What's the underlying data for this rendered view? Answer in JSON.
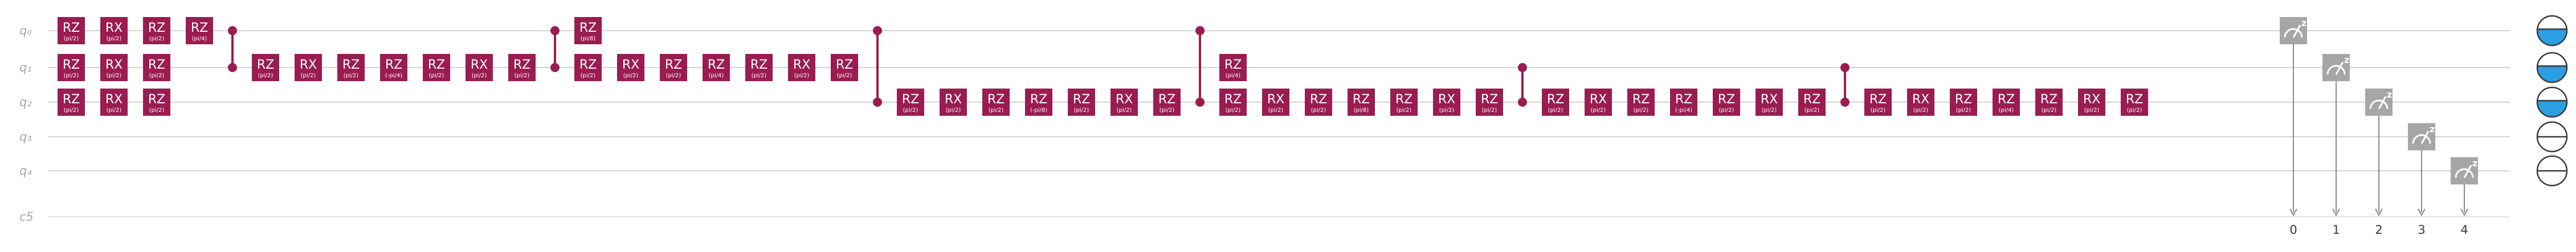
{
  "qubits": [
    {
      "label": "q₀",
      "state_fill": 0.55
    },
    {
      "label": "q₁",
      "state_fill": 0.55
    },
    {
      "label": "q₂",
      "state_fill": 0.55
    },
    {
      "label": "q₃",
      "state_fill": 0
    },
    {
      "label": "q₄",
      "state_fill": 0
    }
  ],
  "classical": {
    "label": "c5",
    "bits": [
      "0",
      "1",
      "2",
      "3",
      "4"
    ]
  },
  "colors": {
    "gate": "#9a1c50",
    "control": "#9a1c50",
    "measure": "#a6a6a6",
    "wire": "#d4d4d4",
    "classical_wire": "#e4e4e4",
    "state_fill": "#2a9fe4",
    "state_outline": "#3a3a3a"
  },
  "icons": {
    "measure": "meter-icon",
    "state": "qubit-state-icon"
  },
  "measure_label": "z",
  "columns": [
    {
      "type": "gates",
      "gates": [
        {
          "q": 0,
          "name": "RZ",
          "param": "(pi/2)"
        },
        {
          "q": 1,
          "name": "RZ",
          "param": "(pi/2)"
        },
        {
          "q": 2,
          "name": "RZ",
          "param": "(pi/2)"
        }
      ]
    },
    {
      "type": "gates",
      "gates": [
        {
          "q": 0,
          "name": "RX",
          "param": "(pi/2)"
        },
        {
          "q": 1,
          "name": "RX",
          "param": "(pi/2)"
        },
        {
          "q": 2,
          "name": "RX",
          "param": "(pi/2)"
        }
      ]
    },
    {
      "type": "gates",
      "gates": [
        {
          "q": 0,
          "name": "RZ",
          "param": "(pi/2)"
        },
        {
          "q": 1,
          "name": "RZ",
          "param": "(pi/2)"
        },
        {
          "q": 2,
          "name": "RZ",
          "param": "(pi/2)"
        }
      ]
    },
    {
      "type": "gates",
      "gates": [
        {
          "q": 0,
          "name": "RZ",
          "param": "(pi/4)"
        }
      ]
    },
    {
      "type": "cz",
      "qubits": [
        0,
        1
      ]
    },
    {
      "type": "gates",
      "gates": [
        {
          "q": 1,
          "name": "RZ",
          "param": "(pi/2)"
        }
      ]
    },
    {
      "type": "gates",
      "gates": [
        {
          "q": 1,
          "name": "RX",
          "param": "(pi/2)"
        }
      ]
    },
    {
      "type": "gates",
      "gates": [
        {
          "q": 1,
          "name": "RZ",
          "param": "(pi/2)"
        }
      ]
    },
    {
      "type": "gates",
      "gates": [
        {
          "q": 1,
          "name": "RZ",
          "param": "(-pi/4)"
        }
      ]
    },
    {
      "type": "gates",
      "gates": [
        {
          "q": 1,
          "name": "RZ",
          "param": "(pi/2)"
        }
      ]
    },
    {
      "type": "gates",
      "gates": [
        {
          "q": 1,
          "name": "RX",
          "param": "(pi/2)"
        }
      ]
    },
    {
      "type": "gates",
      "gates": [
        {
          "q": 1,
          "name": "RZ",
          "param": "(pi/2)"
        }
      ]
    },
    {
      "type": "cz",
      "qubits": [
        0,
        1
      ]
    },
    {
      "type": "gates",
      "gates": [
        {
          "q": 0,
          "name": "RZ",
          "param": "(pi/8)"
        },
        {
          "q": 1,
          "name": "RZ",
          "param": "(pi/2)"
        }
      ]
    },
    {
      "type": "gates",
      "gates": [
        {
          "q": 1,
          "name": "RX",
          "param": "(pi/2)"
        }
      ]
    },
    {
      "type": "gates",
      "gates": [
        {
          "q": 1,
          "name": "RZ",
          "param": "(pi/2)"
        }
      ]
    },
    {
      "type": "gates",
      "gates": [
        {
          "q": 1,
          "name": "RZ",
          "param": "(pi/4)"
        }
      ]
    },
    {
      "type": "gates",
      "gates": [
        {
          "q": 1,
          "name": "RZ",
          "param": "(pi/2)"
        }
      ]
    },
    {
      "type": "gates",
      "gates": [
        {
          "q": 1,
          "name": "RX",
          "param": "(pi/2)"
        }
      ]
    },
    {
      "type": "gates",
      "gates": [
        {
          "q": 1,
          "name": "RZ",
          "param": "(pi/2)"
        }
      ]
    },
    {
      "type": "cz",
      "qubits": [
        0,
        2
      ]
    },
    {
      "type": "gates",
      "gates": [
        {
          "q": 2,
          "name": "RZ",
          "param": "(pi/2)"
        }
      ]
    },
    {
      "type": "gates",
      "gates": [
        {
          "q": 2,
          "name": "RX",
          "param": "(pi/2)"
        }
      ]
    },
    {
      "type": "gates",
      "gates": [
        {
          "q": 2,
          "name": "RZ",
          "param": "(pi/2)"
        }
      ]
    },
    {
      "type": "gates",
      "gates": [
        {
          "q": 2,
          "name": "RZ",
          "param": "(-pi/8)"
        }
      ]
    },
    {
      "type": "gates",
      "gates": [
        {
          "q": 2,
          "name": "RZ",
          "param": "(pi/2)"
        }
      ]
    },
    {
      "type": "gates",
      "gates": [
        {
          "q": 2,
          "name": "RX",
          "param": "(pi/2)"
        }
      ]
    },
    {
      "type": "gates",
      "gates": [
        {
          "q": 2,
          "name": "RZ",
          "param": "(pi/2)"
        }
      ]
    },
    {
      "type": "cz",
      "qubits": [
        0,
        2
      ]
    },
    {
      "type": "gates",
      "gates": [
        {
          "q": 1,
          "name": "RZ",
          "param": "(pi/4)"
        },
        {
          "q": 2,
          "name": "RZ",
          "param": "(pi/2)"
        }
      ]
    },
    {
      "type": "gates",
      "gates": [
        {
          "q": 2,
          "name": "RX",
          "param": "(pi/2)"
        }
      ]
    },
    {
      "type": "gates",
      "gates": [
        {
          "q": 2,
          "name": "RZ",
          "param": "(pi/2)"
        }
      ]
    },
    {
      "type": "gates",
      "gates": [
        {
          "q": 2,
          "name": "RZ",
          "param": "(pi/8)"
        }
      ]
    },
    {
      "type": "gates",
      "gates": [
        {
          "q": 2,
          "name": "RZ",
          "param": "(pi/2)"
        }
      ]
    },
    {
      "type": "gates",
      "gates": [
        {
          "q": 2,
          "name": "RX",
          "param": "(pi/2)"
        }
      ]
    },
    {
      "type": "gates",
      "gates": [
        {
          "q": 2,
          "name": "RZ",
          "param": "(pi/2)"
        }
      ]
    },
    {
      "type": "cz",
      "qubits": [
        1,
        2
      ]
    },
    {
      "type": "gates",
      "gates": [
        {
          "q": 2,
          "name": "RZ",
          "param": "(pi/2)"
        }
      ]
    },
    {
      "type": "gates",
      "gates": [
        {
          "q": 2,
          "name": "RX",
          "param": "(pi/2)"
        }
      ]
    },
    {
      "type": "gates",
      "gates": [
        {
          "q": 2,
          "name": "RZ",
          "param": "(pi/2)"
        }
      ]
    },
    {
      "type": "gates",
      "gates": [
        {
          "q": 2,
          "name": "RZ",
          "param": "(-pi/4)"
        }
      ]
    },
    {
      "type": "gates",
      "gates": [
        {
          "q": 2,
          "name": "RZ",
          "param": "(pi/2)"
        }
      ]
    },
    {
      "type": "gates",
      "gates": [
        {
          "q": 2,
          "name": "RX",
          "param": "(pi/2)"
        }
      ]
    },
    {
      "type": "gates",
      "gates": [
        {
          "q": 2,
          "name": "RZ",
          "param": "(pi/2)"
        }
      ]
    },
    {
      "type": "cz",
      "qubits": [
        1,
        2
      ]
    },
    {
      "type": "gates",
      "gates": [
        {
          "q": 2,
          "name": "RZ",
          "param": "(pi/2)"
        }
      ]
    },
    {
      "type": "gates",
      "gates": [
        {
          "q": 2,
          "name": "RX",
          "param": "(pi/2)"
        }
      ]
    },
    {
      "type": "gates",
      "gates": [
        {
          "q": 2,
          "name": "RZ",
          "param": "(pi/2)"
        }
      ]
    },
    {
      "type": "gates",
      "gates": [
        {
          "q": 2,
          "name": "RZ",
          "param": "(pi/4)"
        }
      ]
    },
    {
      "type": "gates",
      "gates": [
        {
          "q": 2,
          "name": "RZ",
          "param": "(pi/2)"
        }
      ]
    },
    {
      "type": "gates",
      "gates": [
        {
          "q": 2,
          "name": "RX",
          "param": "(pi/2)"
        }
      ]
    },
    {
      "type": "gates",
      "gates": [
        {
          "q": 2,
          "name": "RZ",
          "param": "(pi/2)"
        }
      ]
    }
  ],
  "measurements": [
    {
      "q": 0,
      "bit": "0"
    },
    {
      "q": 1,
      "bit": "1"
    },
    {
      "q": 2,
      "bit": "2"
    },
    {
      "q": 3,
      "bit": "3"
    },
    {
      "q": 4,
      "bit": "4"
    }
  ]
}
